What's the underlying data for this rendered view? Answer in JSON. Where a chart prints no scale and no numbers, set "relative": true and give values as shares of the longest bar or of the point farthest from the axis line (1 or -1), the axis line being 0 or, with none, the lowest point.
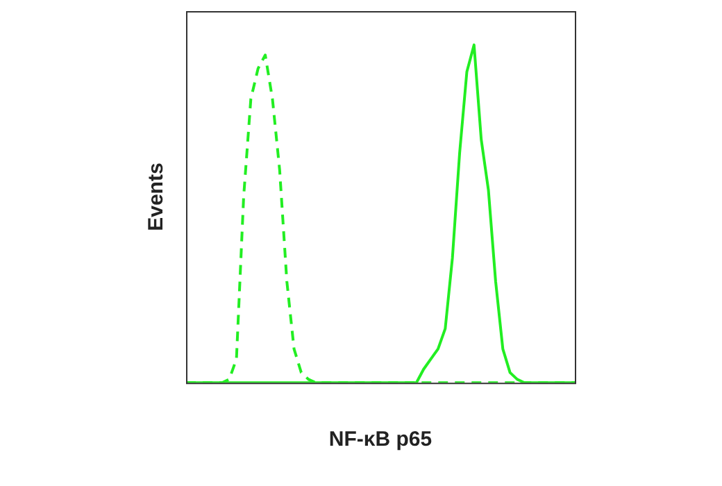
{
  "chart_data": {
    "type": "line",
    "xlabel": "NF-κB p65",
    "ylabel": "Events",
    "relative": true,
    "marker": "none",
    "categories": [
      null,
      null,
      null,
      null,
      null,
      null,
      null,
      null,
      null,
      null,
      null,
      null,
      null,
      null,
      null,
      null,
      null,
      null,
      null,
      null,
      null,
      null,
      null,
      null,
      null,
      null,
      null,
      null,
      null,
      null,
      null,
      null,
      null,
      null,
      null,
      null,
      null,
      null,
      null,
      null,
      null,
      null,
      null,
      null,
      null,
      null,
      null,
      null,
      null,
      null,
      null,
      null,
      null,
      null,
      null
    ],
    "series": [
      {
        "color": "#22ee22",
        "line_style": "dashed",
        "values": [
          0,
          0,
          0,
          0,
          0,
          0,
          0.01,
          0.07,
          0.55,
          0.84,
          0.93,
          0.97,
          0.84,
          0.63,
          0.3,
          0.1,
          0.03,
          0.01,
          0,
          0,
          0,
          0,
          0,
          0,
          0,
          0,
          0,
          0,
          0,
          0,
          0,
          0,
          0,
          0,
          0,
          0,
          0,
          0,
          0,
          0,
          0,
          0,
          0,
          0,
          0,
          0,
          0,
          0,
          0,
          0,
          0,
          0,
          0,
          0,
          0
        ]
      },
      {
        "color": "#22ee22",
        "line_style": "solid",
        "values": [
          0,
          0,
          0,
          0,
          0,
          0,
          0,
          0,
          0,
          0,
          0,
          0,
          0,
          0,
          0,
          0,
          0,
          0,
          0,
          0,
          0,
          0,
          0,
          0,
          0,
          0,
          0,
          0,
          0,
          0,
          0,
          0,
          0,
          0.04,
          0.07,
          0.1,
          0.16,
          0.37,
          0.68,
          0.92,
          1,
          0.72,
          0.57,
          0.3,
          0.1,
          0.03,
          0.01,
          0,
          0,
          0,
          0,
          0,
          0,
          0,
          0
        ]
      }
    ]
  }
}
